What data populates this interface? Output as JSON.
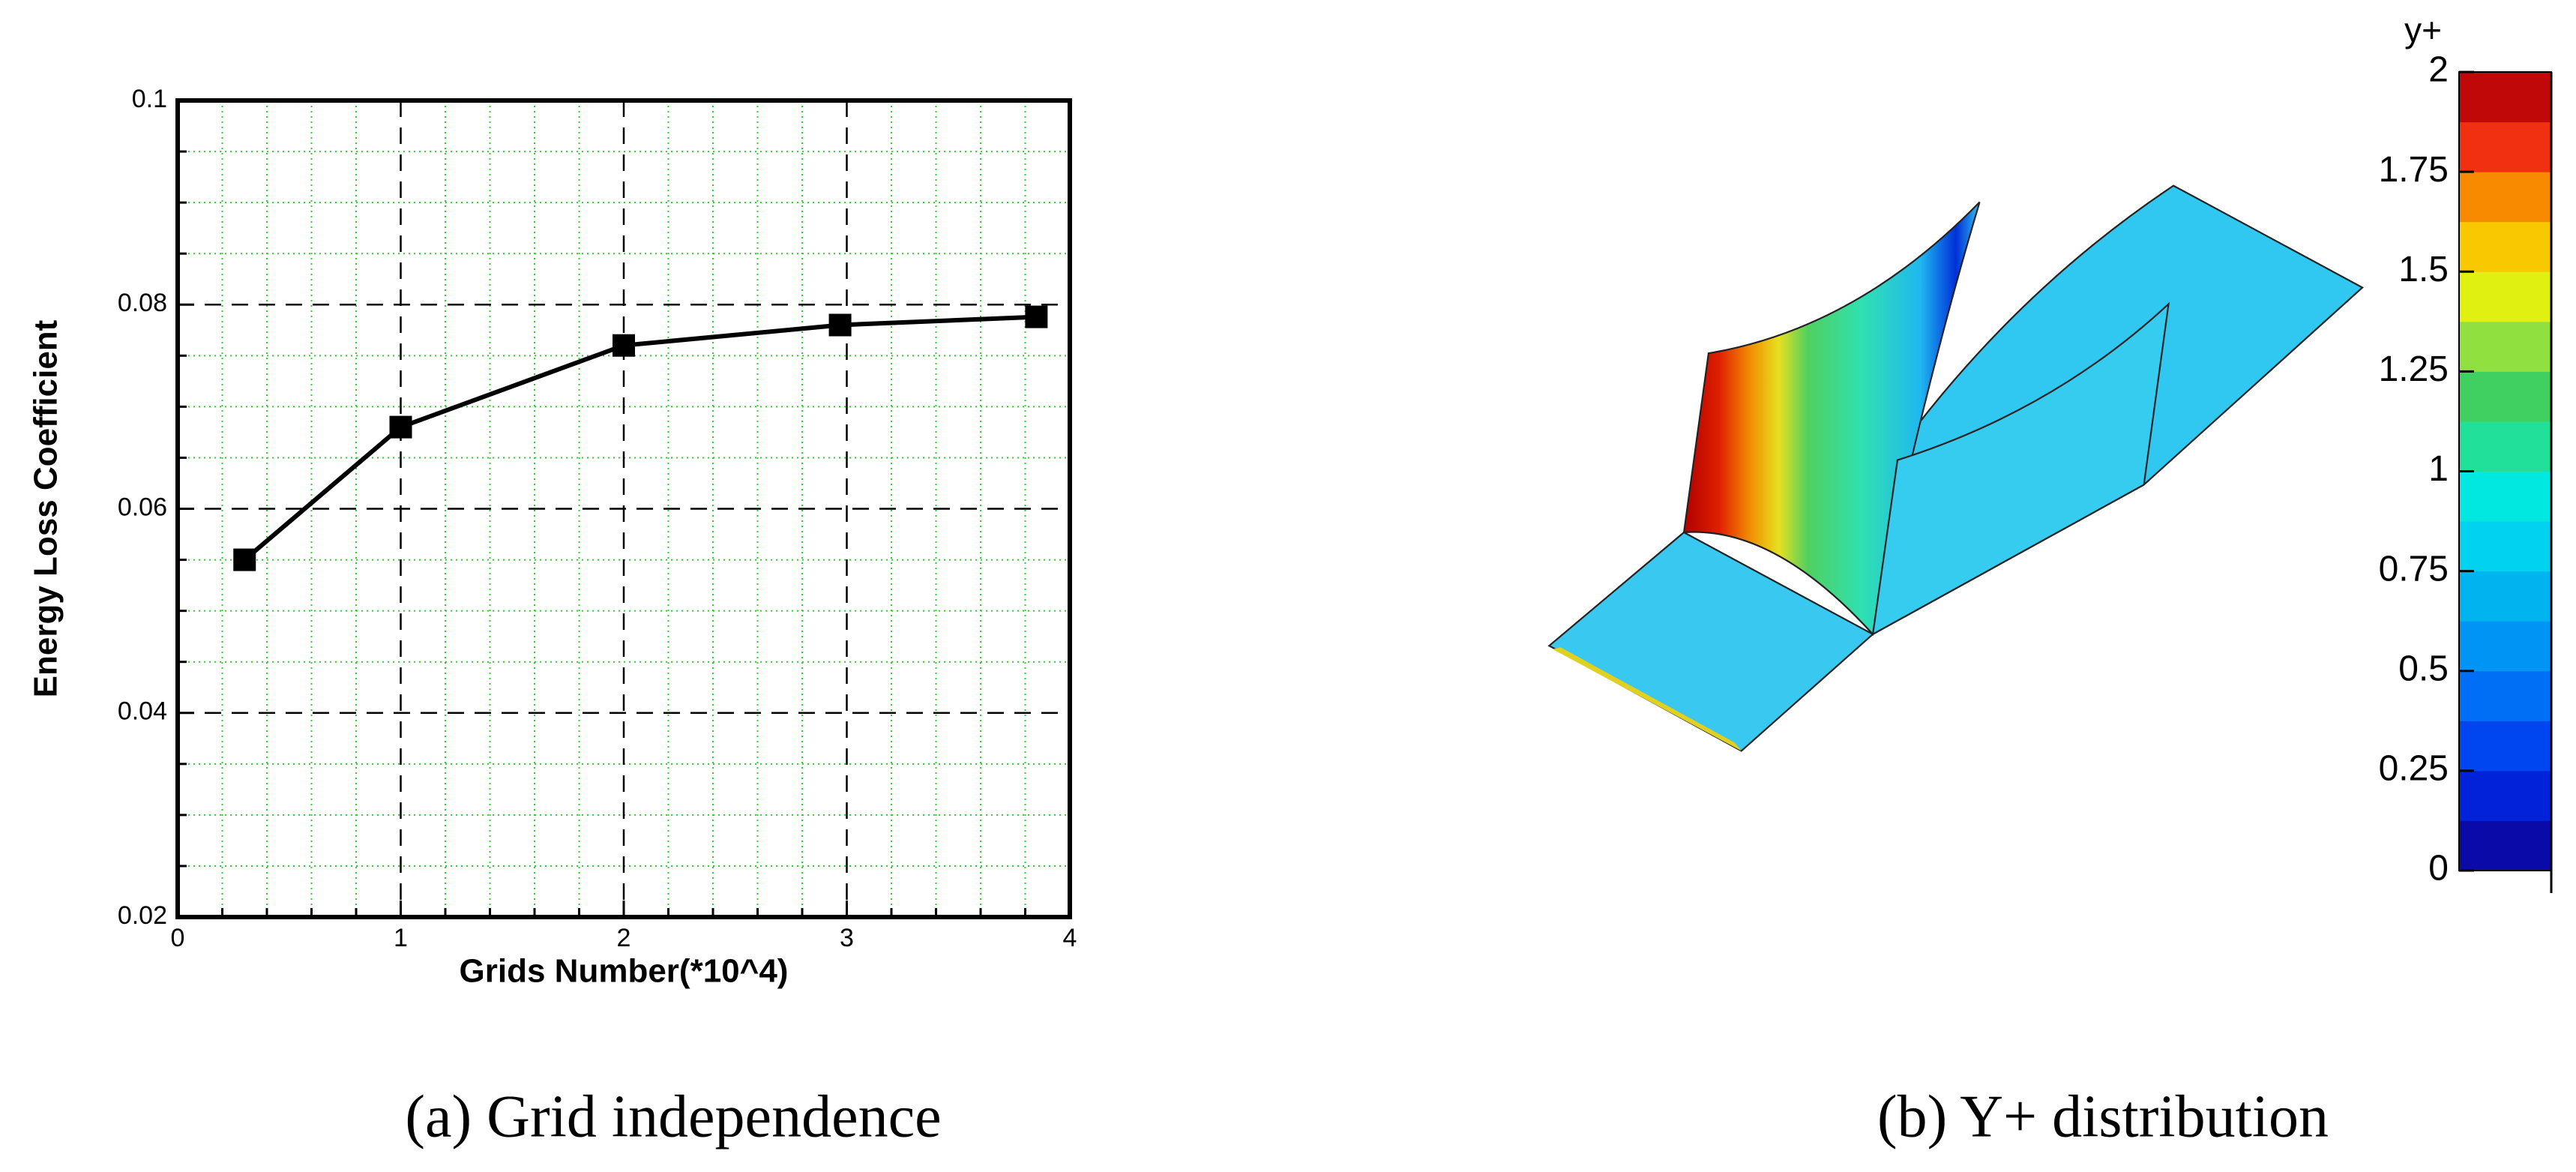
{
  "chart_data": [
    {
      "type": "line",
      "ylabel": "Energy Loss Coefficient",
      "xlabel": "Grids Number(*10^4)",
      "x": [
        0.3,
        1,
        2,
        2.97,
        3.85
      ],
      "series": [
        {
          "name": "Energy Loss Coefficient",
          "color": "#000000",
          "values": [
            0.055,
            0.068,
            0.076,
            0.078,
            0.0788
          ]
        }
      ],
      "xlim": [
        0,
        4
      ],
      "xticks": [
        0,
        1,
        2,
        3,
        4
      ],
      "ylim": [
        0.02,
        0.1
      ],
      "yticks": [
        0.02,
        0.04,
        0.06,
        0.08,
        0.1
      ],
      "xminor": [
        0.2,
        0.4,
        0.6,
        0.8,
        1.2,
        1.4,
        1.6,
        1.8,
        2.2,
        2.4,
        2.6,
        2.8,
        3.2,
        3.4,
        3.6,
        3.8
      ],
      "yminor": [
        0.025,
        0.03,
        0.035,
        0.045,
        0.05,
        0.055,
        0.065,
        0.07,
        0.075,
        0.085,
        0.09,
        0.095
      ],
      "grid": true,
      "minor_grid_color": "#33cc33",
      "caption": "(a) Grid independence"
    },
    {
      "type": "colorbar",
      "title": "y+",
      "ylim": [
        0,
        2
      ],
      "yticks": [
        0,
        0.25,
        0.5,
        0.75,
        1,
        1.25,
        1.5,
        1.75,
        2
      ],
      "colors": [
        "#0a0aa8",
        "#0022d8",
        "#0046f0",
        "#006ef5",
        "#0094f5",
        "#00b4f0",
        "#00d2f0",
        "#00e8e0",
        "#20e09a",
        "#40d060",
        "#90e040",
        "#e0f010",
        "#f8c800",
        "#f88a00",
        "#f03010",
        "#c00808"
      ],
      "caption": "(b) Y+ distribution"
    }
  ]
}
